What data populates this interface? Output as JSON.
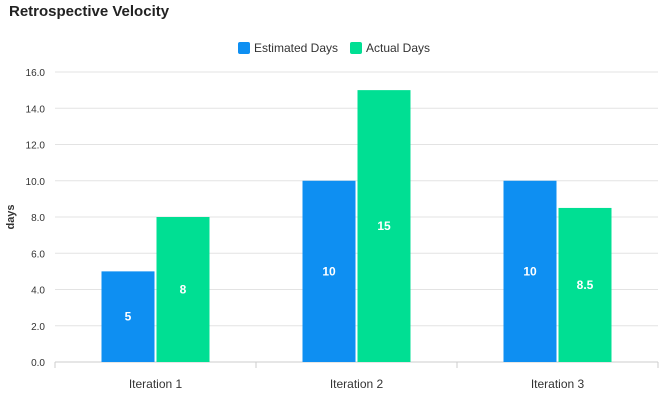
{
  "chart_data": {
    "type": "bar",
    "title": "Retrospective Velocity",
    "xlabel": "",
    "ylabel": "days",
    "ylim": [
      0,
      16
    ],
    "yticks": [
      "0.0",
      "2.0",
      "4.0",
      "6.0",
      "8.0",
      "10.0",
      "12.0",
      "14.0",
      "16.0"
    ],
    "categories": [
      "Iteration 1",
      "Iteration 2",
      "Iteration 3"
    ],
    "series": [
      {
        "name": "Estimated Days",
        "color": "#0e8ff2",
        "values": [
          5,
          10,
          10
        ],
        "labels": [
          "5",
          "10",
          "10"
        ]
      },
      {
        "name": "Actual Days",
        "color": "#00df93",
        "values": [
          8,
          15,
          8.5
        ],
        "labels": [
          "8",
          "15",
          "8.5"
        ]
      }
    ],
    "grid": true,
    "legend_position": "top-center"
  }
}
